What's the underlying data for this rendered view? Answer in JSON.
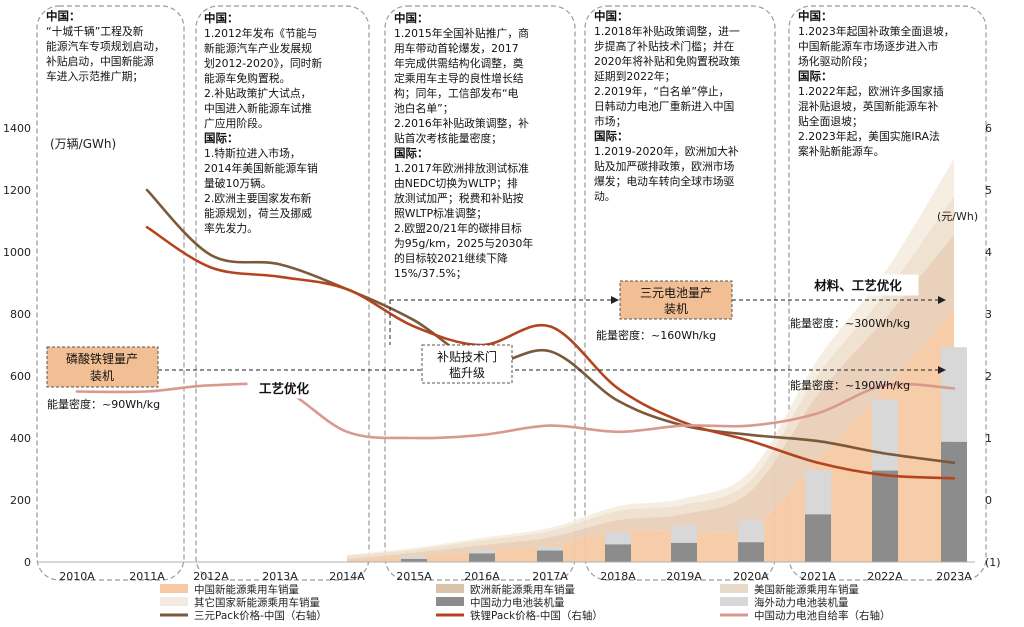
{
  "chart_data": {
    "type": "combo",
    "categories": [
      "2010A",
      "2011A",
      "2012A",
      "2013A",
      "2014A",
      "2015A",
      "2016A",
      "2017A",
      "2018A",
      "2019A",
      "2020A",
      "2021A",
      "2022A",
      "2023A"
    ],
    "y_left_label": "(万辆/GWh)",
    "y_right_label": "(元/Wh)",
    "y_left_range": [
      0,
      1400
    ],
    "y_right_range": [
      -1,
      6
    ],
    "y_left_ticks": [
      "0",
      "200",
      "400",
      "600",
      "800",
      "1000",
      "1200",
      "1400"
    ],
    "y_right_ticks": [
      "(1)",
      "0",
      "1",
      "2",
      "3",
      "4",
      "5",
      "6"
    ],
    "area_series": [
      {
        "name": "中国新能源乘用车销量",
        "color": "#f6c9a4",
        "values": [
          0,
          0,
          1,
          2,
          5,
          20,
          35,
          55,
          100,
          100,
          115,
          330,
          560,
          815
        ]
      },
      {
        "name": "欧洲新能源乘用车销量",
        "color": "#e8cfb8",
        "values": [
          0,
          0,
          1,
          2,
          5,
          10,
          20,
          25,
          35,
          55,
          115,
          210,
          225,
          240
        ]
      },
      {
        "name": "美国新能源乘用车销量",
        "color": "#efe0ce",
        "values": [
          0,
          0,
          2,
          5,
          10,
          10,
          15,
          20,
          30,
          30,
          35,
          65,
          80,
          125
        ]
      },
      {
        "name": "其它国家新能源乘用车销量",
        "color": "#f6ede2",
        "values": [
          0,
          0,
          1,
          2,
          3,
          5,
          8,
          10,
          15,
          20,
          30,
          50,
          70,
          120
        ]
      }
    ],
    "bar_series": [
      {
        "name": "中国动力电池装机量",
        "color": "#8c8c8c",
        "values": [
          0,
          0,
          0,
          0,
          0,
          10,
          28,
          37,
          57,
          62,
          64,
          154,
          295,
          388
        ]
      },
      {
        "name": "海外动力电池装机量",
        "color": "#d8d8d8",
        "values": [
          0,
          0,
          0,
          0,
          0,
          8,
          10,
          13,
          40,
          55,
          70,
          142,
          230,
          305
        ]
      }
    ],
    "line_series": [
      {
        "name": "三元Pack价格-中国（右轴）",
        "color": "#7b5a3c",
        "values": [
          null,
          5.0,
          3.95,
          3.8,
          3.4,
          2.9,
          2.2,
          2.4,
          1.6,
          1.2,
          1.05,
          0.95,
          0.75,
          0.6
        ]
      },
      {
        "name": "铁锂Pack价格-中国（右轴）",
        "color": "#b4441f",
        "values": [
          null,
          4.4,
          3.75,
          3.6,
          3.4,
          2.8,
          2.5,
          2.8,
          1.8,
          1.25,
          0.95,
          0.6,
          0.4,
          0.35
        ]
      },
      {
        "name": "中国动力电池自给率（右轴）",
        "color": "#d99a8e",
        "values": [
          1.75,
          1.75,
          1.85,
          1.8,
          1.1,
          1.0,
          1.05,
          1.2,
          1.1,
          1.2,
          1.2,
          1.4,
          1.85,
          1.8
        ]
      }
    ],
    "legend": [
      {
        "label": "中国新能源乘用车销量",
        "kind": "area",
        "color": "#f6c9a4"
      },
      {
        "label": "欧洲新能源乘用车销量",
        "kind": "area",
        "color": "#d9c3a8"
      },
      {
        "label": "美国新能源乘用车销量",
        "kind": "area",
        "color": "#e8dac8"
      },
      {
        "label": "其它国家新能源乘用车销量",
        "kind": "area",
        "color": "#f3ebe1"
      },
      {
        "label": "中国动力电池装机量",
        "kind": "bar",
        "color": "#8c8c8c"
      },
      {
        "label": "海外动力电池装机量",
        "kind": "bar",
        "color": "#d8d8d8"
      },
      {
        "label": "三元Pack价格-中国（右轴）",
        "kind": "line",
        "color": "#7b5a3c"
      },
      {
        "label": "铁锂Pack价格-中国（右轴）",
        "kind": "line",
        "color": "#b4441f"
      },
      {
        "label": "中国动力电池自给率（右轴）",
        "kind": "line",
        "color": "#d99a8e"
      }
    ],
    "annotations": {
      "period1": [
        "中国：",
        "“十城千辆”工程及新",
        "能源汽车专项规划启动，",
        "补贴启动，中国新能源",
        "车进入示范推广期；"
      ],
      "period2": [
        "中国：",
        "1.2012年发布《节能与",
        "新能源汽车产业发展规",
        "划2012-2020》，同时新",
        "能源车免购置税。",
        "2.补贴政策扩大试点，",
        "中国进入新能源车试推",
        "广应用阶段。",
        "国际：",
        "1.特斯拉进入市场，",
        "2014年美国新能源车销",
        "量破10万辆。",
        "2.欧洲主要国家发布新",
        "能源规划，荷兰及挪威",
        "率先发力。"
      ],
      "period3": [
        "中国：",
        "1.2015年全国补贴推广，商",
        "用车带动首轮爆发，2017",
        "年完成供需结构化调整，奠",
        "定乘用车主导的良性增长结",
        "构；同年，工信部发布“电",
        "池白名单”；",
        "2.2016年补贴政策调整，补",
        "贴首次考核能量密度；",
        "国际：",
        "1.2017年欧洲排放测试标准",
        "由NEDC切换为WLTP；排",
        "放测试加严；税费和补贴按",
        "照WLTP标准调整；",
        "2.欧盟20/21年的碳排目标",
        "为95g/km，2025与2030年",
        "的目标较2021继续下降",
        "15%/37.5%；"
      ],
      "period4": [
        "中国：",
        "1.2018年补贴政策调整，进一",
        "步提高了补贴技术门槛；并在",
        "2020年将补贴和免购置税政策",
        "延期到2022年；",
        "2.2019年，“白名单”停止，",
        "日韩动力电池厂重新进入中国",
        "市场；",
        "国际：",
        "1.2019-2020年，欧洲加大补",
        "贴及加严碳排政策，欧洲市场",
        "爆发；电动车转向全球市场驱",
        "动。"
      ],
      "period5": [
        "中国：",
        "1.2023年起国补政策全面退坡，",
        "中国新能源车市场逐步进入市",
        "场化驱动阶段；",
        "国际：",
        "1.2022年起，欧洲许多国家插",
        "混补贴退坡，英国新能源车补",
        "贴全面退坡；",
        "2.2023年起，美国实施IRA法",
        "案补贴新能源车。"
      ],
      "milestones": {
        "lfp": [
          "磷酸铁锂量产",
          "装机"
        ],
        "subsidy": [
          "补贴技术门",
          "槛升级"
        ],
        "ncm": [
          "三元电池量产",
          "装机"
        ],
        "process": "工艺优化",
        "material": "材料、工艺优化",
        "density_lfp_early": "能量密度：~90Wh/kg",
        "density_ncm": "能量密度：~160Wh/kg",
        "density_ncm_late": "能量密度：~300Wh/kg",
        "density_lfp_late": "能量密度：~190Wh/kg"
      }
    }
  }
}
